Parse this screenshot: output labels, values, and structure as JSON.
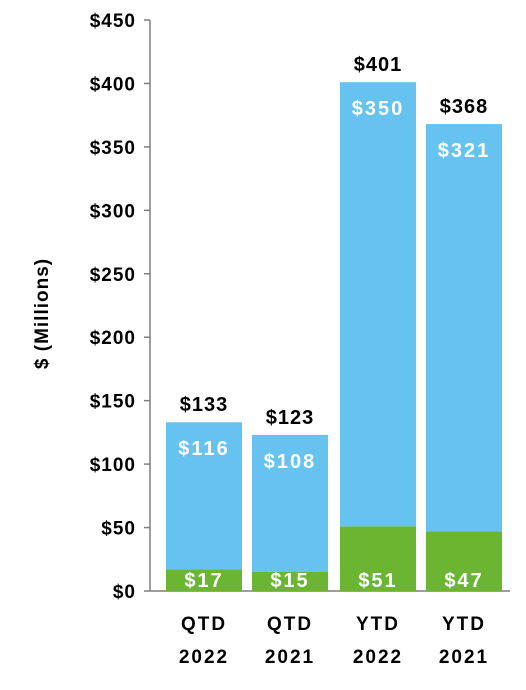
{
  "chart_data": {
    "type": "bar",
    "stacked": true,
    "categories": [
      [
        "QTD",
        "2022"
      ],
      [
        "QTD",
        "2021"
      ],
      [
        "YTD",
        "2022"
      ],
      [
        "YTD",
        "2021"
      ]
    ],
    "series": [
      {
        "values": [
          17,
          15,
          51,
          47
        ],
        "labels": [
          "$17",
          "$15",
          "$51",
          "$47"
        ],
        "color": "#6bb533"
      },
      {
        "values": [
          116,
          108,
          350,
          321
        ],
        "labels": [
          "$116",
          "$108",
          "$350",
          "$321"
        ],
        "color": "#66c3ef"
      }
    ],
    "totals": [
      "$133",
      "$123",
      "$401",
      "$368"
    ],
    "total_values": [
      133,
      123,
      401,
      368
    ],
    "ylabel": "$ (Millions)",
    "ylim": [
      0,
      450
    ],
    "yticks": [
      0,
      50,
      100,
      150,
      200,
      250,
      300,
      350,
      400,
      450
    ],
    "ytick_labels": [
      "$0",
      "$50",
      "$100",
      "$150",
      "$200",
      "$250",
      "$300",
      "$350",
      "$400",
      "$450"
    ],
    "grid": false,
    "legend": "none"
  }
}
